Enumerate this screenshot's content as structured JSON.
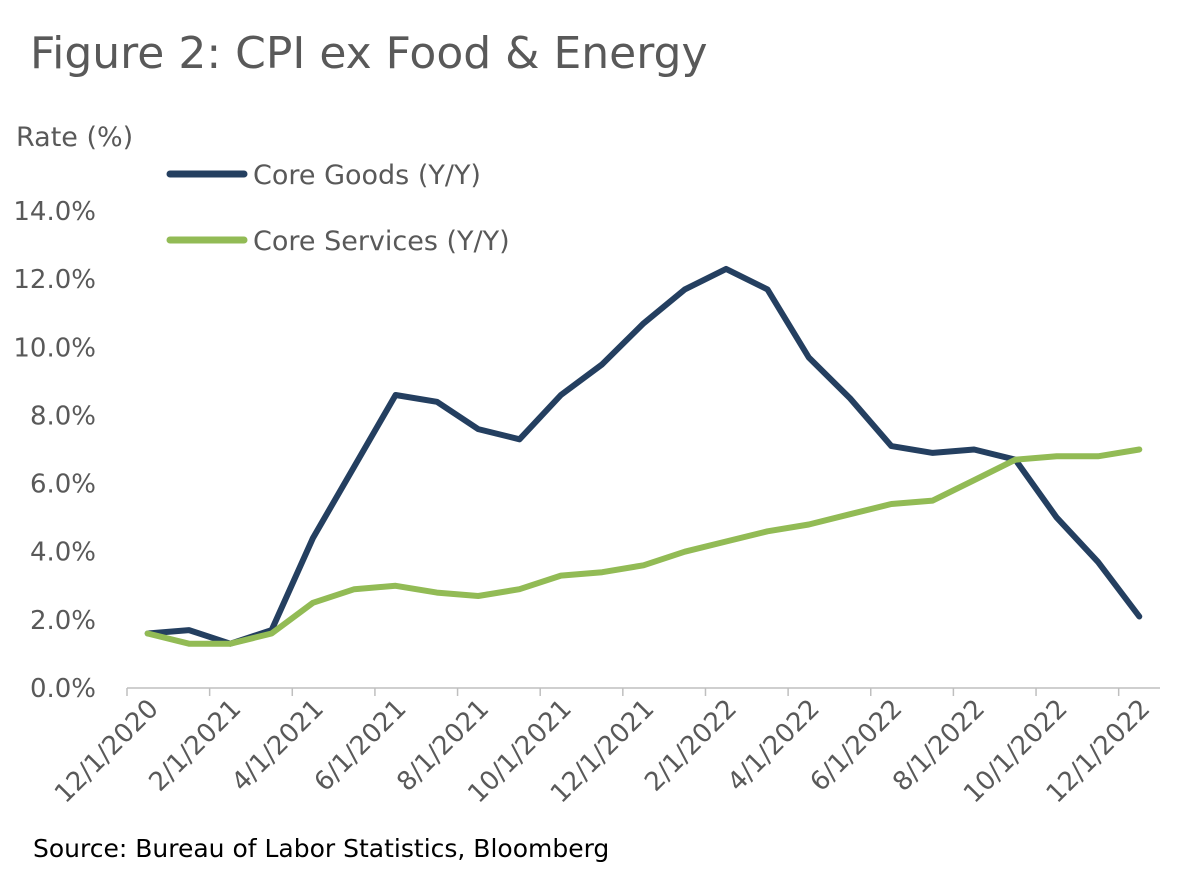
{
  "title": "Figure 2: CPI ex Food & Energy",
  "source": "Source: Bureau of Labor Statistics, Bloomberg",
  "colors": {
    "core_goods": "#243f60",
    "core_services": "#92bb55",
    "axis": "#bfbfbf",
    "text": "#595959"
  },
  "chart_data": {
    "type": "line",
    "title": "Figure 2: CPI ex Food & Energy",
    "xlabel": "",
    "ylabel": "Rate (%)",
    "ylim": [
      0,
      14
    ],
    "yticks": [
      "0.0%",
      "2.0%",
      "4.0%",
      "6.0%",
      "8.0%",
      "10.0%",
      "12.0%",
      "14.0%"
    ],
    "x": [
      "12/1/2020",
      "1/1/2021",
      "2/1/2021",
      "3/1/2021",
      "4/1/2021",
      "5/1/2021",
      "6/1/2021",
      "7/1/2021",
      "8/1/2021",
      "9/1/2021",
      "10/1/2021",
      "11/1/2021",
      "12/1/2021",
      "1/1/2022",
      "2/1/2022",
      "3/1/2022",
      "4/1/2022",
      "5/1/2022",
      "6/1/2022",
      "7/1/2022",
      "8/1/2022",
      "9/1/2022",
      "10/1/2022",
      "11/1/2022",
      "12/1/2022"
    ],
    "xtick_labels": [
      "12/1/2020",
      "2/1/2021",
      "4/1/2021",
      "6/1/2021",
      "8/1/2021",
      "10/1/2021",
      "12/1/2021",
      "2/1/2022",
      "4/1/2022",
      "6/1/2022",
      "8/1/2022",
      "10/1/2022",
      "12/1/2022"
    ],
    "legend_position": "top-left",
    "grid": false,
    "series": [
      {
        "name": "Core Goods (Y/Y)",
        "values": [
          1.6,
          1.7,
          1.3,
          1.7,
          4.4,
          6.5,
          8.6,
          8.4,
          7.6,
          7.3,
          8.6,
          9.5,
          10.7,
          11.7,
          12.3,
          11.7,
          9.7,
          8.5,
          7.1,
          6.9,
          7.0,
          6.7,
          5.0,
          3.7,
          2.1
        ]
      },
      {
        "name": "Core Services (Y/Y)",
        "values": [
          1.6,
          1.3,
          1.3,
          1.6,
          2.5,
          2.9,
          3.0,
          2.8,
          2.7,
          2.9,
          3.3,
          3.4,
          3.6,
          4.0,
          4.3,
          4.6,
          4.8,
          5.1,
          5.4,
          5.5,
          6.1,
          6.7,
          6.8,
          6.8,
          7.0
        ]
      }
    ]
  }
}
